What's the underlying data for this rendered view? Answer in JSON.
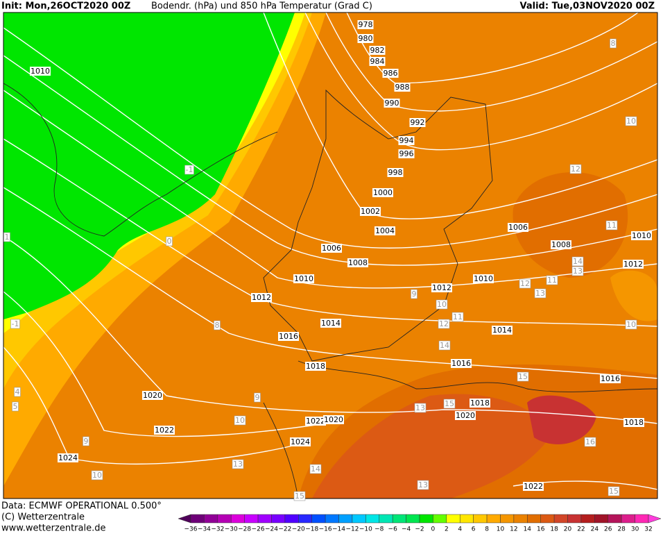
{
  "header": {
    "init": "Init: Mon,26OCT2020 00Z",
    "title": "Bodendr. (hPa) und 850 hPa Temperatur (Grad C)",
    "valid": "Valid: Tue,03NOV2020 00Z"
  },
  "pressure_labels": [
    "978",
    "980",
    "982",
    "984",
    "986",
    "988",
    "990",
    "992",
    "994",
    "996",
    "998",
    "1000",
    "1002",
    "1004",
    "1006",
    "1008",
    "1010",
    "1012",
    "1014",
    "1016",
    "1018",
    "1020",
    "1022",
    "1024",
    "1022",
    "1020",
    "1024",
    "1010",
    "1006",
    "1008",
    "1010",
    "1012",
    "1010",
    "1012",
    "1014",
    "1016",
    "1018",
    "1020",
    "1016",
    "1018",
    "1022"
  ],
  "temperature_labels": [
    "-1",
    "0",
    "-1",
    "1",
    "8",
    "9",
    "10",
    "9",
    "13",
    "14",
    "15",
    "13",
    "10",
    "5",
    "4",
    "9",
    "10",
    "11",
    "12",
    "14",
    "15",
    "15",
    "13",
    "12",
    "11",
    "13",
    "12",
    "11",
    "14",
    "13",
    "10",
    "10",
    "8",
    "16",
    "15"
  ],
  "footer": {
    "data": "Data: ECMWF OPERATIONAL 0.500°",
    "copyright": "(C) Wetterzentrale",
    "url": "www.wetterzentrale.de"
  },
  "scale": {
    "labels": [
      "−36",
      "−34",
      "−32",
      "−30",
      "−28",
      "−26",
      "−24",
      "−22",
      "−20",
      "−18",
      "−16",
      "−14",
      "−12",
      "−10",
      "−8",
      "−6",
      "−4",
      "−2",
      "0",
      "2",
      "4",
      "6",
      "8",
      "10",
      "12",
      "14",
      "16",
      "18",
      "20",
      "22",
      "24",
      "26",
      "28",
      "30",
      "32"
    ],
    "colors": [
      "#50005a",
      "#6e0078",
      "#900096",
      "#b400b4",
      "#dc00dc",
      "#c800ff",
      "#a000ff",
      "#7800ff",
      "#5000ff",
      "#2828ff",
      "#0050ff",
      "#0078ff",
      "#00a0ff",
      "#00c8ff",
      "#00e6e6",
      "#00e6b4",
      "#00e678",
      "#00e650",
      "#00e600",
      "#64ff00",
      "#ffff00",
      "#ffe600",
      "#ffc800",
      "#ffaa00",
      "#f59600",
      "#eb8200",
      "#e16e00",
      "#dc5a14",
      "#d24628",
      "#c83232",
      "#b41e1e",
      "#a01428",
      "#b4145a",
      "#dc1e8c",
      "#ff28b4",
      "#ff3cdc"
    ]
  }
}
